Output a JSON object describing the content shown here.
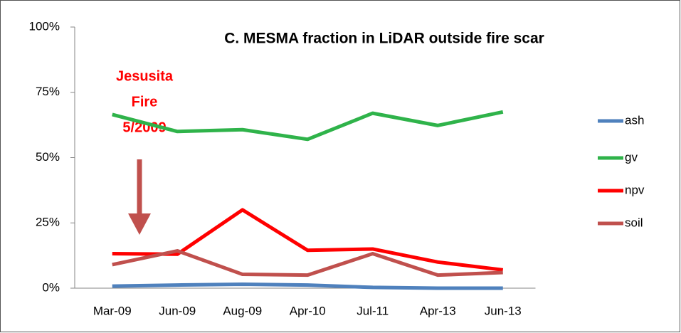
{
  "chart_data": {
    "type": "line",
    "title": "C. MESMA fraction in LiDAR outside fire scar",
    "annotation": [
      "Jesusita",
      "Fire",
      "5/2009"
    ],
    "categories": [
      "Mar-09",
      "Jun-09",
      "Aug-09",
      "Apr-10",
      "Jul-11",
      "Apr-13",
      "Jun-13"
    ],
    "series": [
      {
        "name": "ash",
        "color": "#4f81bd",
        "values": [
          0.8,
          1.2,
          1.5,
          1.2,
          0.3,
          0,
          0
        ]
      },
      {
        "name": "gv",
        "color": "#2fb34a",
        "values": [
          66.5,
          60,
          60.7,
          57,
          67,
          62.3,
          67.5
        ]
      },
      {
        "name": "npv",
        "color": "#ff0000",
        "values": [
          13.2,
          13,
          30,
          14.5,
          15,
          10,
          7
        ]
      },
      {
        "name": "soil",
        "color": "#c0504d",
        "values": [
          9,
          14.3,
          5.3,
          5,
          13.2,
          5,
          6
        ]
      }
    ],
    "ylim": [
      0,
      100
    ],
    "yticks": [
      {
        "value": 0,
        "label": "0%"
      },
      {
        "value": 25,
        "label": "25%"
      },
      {
        "value": 50,
        "label": "50%"
      },
      {
        "value": 75,
        "label": "75%"
      },
      {
        "value": 100,
        "label": "100%"
      }
    ],
    "legend": "right"
  }
}
